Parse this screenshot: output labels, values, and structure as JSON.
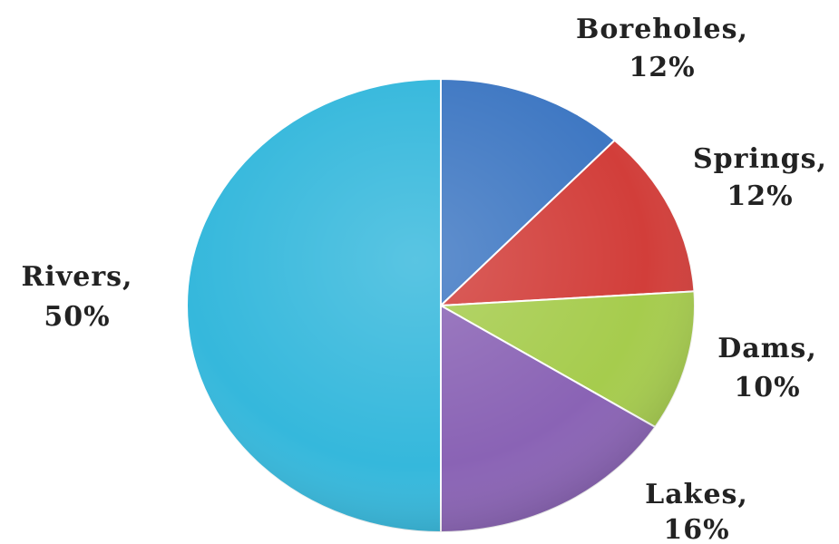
{
  "chart_data": {
    "type": "pie",
    "title": "",
    "slices": [
      {
        "name": "Boreholes",
        "value": 12,
        "label_name": "Boreholes,",
        "label_pct": "12%",
        "color": "#3f78c3"
      },
      {
        "name": "Springs",
        "value": 12,
        "label_name": "Springs,",
        "label_pct": "12%",
        "color": "#d23e3a"
      },
      {
        "name": "Dams",
        "value": 10,
        "label_name": "Dams,",
        "label_pct": "10%",
        "color": "#a6cc4d"
      },
      {
        "name": "Lakes",
        "value": 16,
        "label_name": "Lakes,",
        "label_pct": "16%",
        "color": "#8a63b5"
      },
      {
        "name": "Rivers",
        "value": 50,
        "label_name": "Rivers,",
        "label_pct": "50%",
        "color": "#35b8dc"
      }
    ],
    "start_angle_deg": 0,
    "direction": "clockwise",
    "style": "3d-shaded",
    "legend": "none"
  }
}
